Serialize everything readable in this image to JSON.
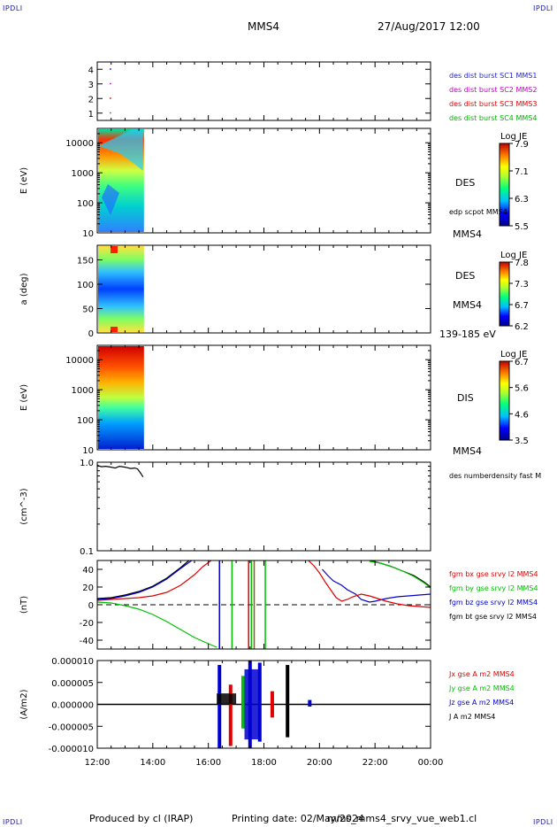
{
  "header": {
    "corner_tl": "IPDLI",
    "corner_tr": "IPDLI",
    "corner_bl": "IPDLI",
    "corner_br": "IPDLI",
    "spacecraft": "MMS4",
    "datetime": "27/Aug/2017 12:00"
  },
  "footer": {
    "produced_by": "Produced by cl (IRAP)",
    "printing_date": "Printing date: 02/May/2024",
    "filename": "mms_mms4_srvy_vue_web1.cl"
  },
  "time_axis": {
    "start": "12:00",
    "end": "00:00",
    "ticks": [
      "12:00",
      "14:00",
      "16:00",
      "18:00",
      "20:00",
      "22:00",
      "00:00"
    ],
    "data_coverage_end_hours": 13.65
  },
  "chart_data": [
    {
      "panel": "burst",
      "type": "scatter",
      "ylim": [
        0.5,
        4.5
      ],
      "yticks": [
        "1",
        "2",
        "3",
        "4"
      ],
      "points": [
        {
          "hour": 12.45,
          "y": 1,
          "color": "#00a000"
        },
        {
          "hour": 12.45,
          "y": 2,
          "color": "#e00000"
        },
        {
          "hour": 12.45,
          "y": 3,
          "color": "#c000c0"
        },
        {
          "hour": 12.45,
          "y": 4,
          "color": "#0000e0"
        }
      ],
      "legend": [
        {
          "label": "des dist burst SC1 MMS1",
          "color": "#1f1fd0"
        },
        {
          "label": "des dist burst SC2 MMS2",
          "color": "#c000c0"
        },
        {
          "label": "des dist burst SC3 MMS3",
          "color": "#e00000"
        },
        {
          "label": "des dist burst SC4 MMS4",
          "color": "#00b000"
        }
      ]
    },
    {
      "panel": "des_energy",
      "type": "heatmap",
      "ylabel": "E (eV)",
      "yscale": "log",
      "ylim": [
        10,
        30000
      ],
      "yticks": [
        "10",
        "100",
        "1000",
        "10000"
      ],
      "right_labels": [
        "DES",
        "edp scpot MMS4",
        "MMS4"
      ],
      "colorbar": {
        "title": "Log JE",
        "min": 5.5,
        "max": 7.9,
        "ticks": [
          "7.9",
          "7.1",
          "6.3",
          "5.5"
        ]
      }
    },
    {
      "panel": "des_pitch",
      "type": "heatmap",
      "ylabel": "a (deg)",
      "ylim": [
        0,
        180
      ],
      "yticks": [
        "0",
        "50",
        "100",
        "150"
      ],
      "right_labels": [
        "DES",
        "MMS4",
        "139-185 eV"
      ],
      "colorbar": {
        "title": "Log JE",
        "min": 6.2,
        "max": 7.8,
        "ticks": [
          "7.8",
          "7.3",
          "6.7",
          "6.2"
        ]
      }
    },
    {
      "panel": "dis_energy",
      "type": "heatmap",
      "ylabel": "E (eV)",
      "yscale": "log",
      "ylim": [
        10,
        30000
      ],
      "yticks": [
        "10",
        "100",
        "1000",
        "10000"
      ],
      "right_labels": [
        "DIS",
        "MMS4"
      ],
      "colorbar": {
        "title": "Log JE",
        "min": 3.5,
        "max": 6.7,
        "ticks": [
          "6.7",
          "5.6",
          "4.6",
          "3.5"
        ]
      }
    },
    {
      "panel": "density",
      "type": "line",
      "ylabel": "(cm^-3)",
      "yscale": "log",
      "ylim": [
        0.1,
        1.0
      ],
      "yticks": [
        "0.1",
        "1.0"
      ],
      "legend": [
        {
          "label": "des numberdensity fast M",
          "color": "#000000"
        }
      ],
      "series": [
        {
          "name": "des numberdensity fast M",
          "color": "#000000",
          "x": [
            12.0,
            12.05,
            12.15,
            12.3,
            12.5,
            12.65,
            12.8,
            13.0,
            13.2,
            13.35,
            13.45,
            13.5,
            13.55,
            13.6,
            13.65
          ],
          "y": [
            0.93,
            0.91,
            0.89,
            0.9,
            0.88,
            0.86,
            0.9,
            0.88,
            0.85,
            0.86,
            0.84,
            0.8,
            0.76,
            0.72,
            0.68
          ]
        }
      ]
    },
    {
      "panel": "fgm",
      "type": "line",
      "ylabel": "(nT)",
      "ylim": [
        -50,
        50
      ],
      "yticks": [
        "-40",
        "-20",
        "0",
        "20",
        "40"
      ],
      "legend": [
        {
          "label": "fgm bx gse srvy l2 MMS4",
          "color": "#e00000"
        },
        {
          "label": "fgm by gse srvy l2 MMS4",
          "color": "#00c000"
        },
        {
          "label": "fgm bz gse srvy l2 MMS4",
          "color": "#0000d0"
        },
        {
          "label": "fgm bt gse srvy l2 MMS4",
          "color": "#000000"
        }
      ],
      "series": [
        {
          "name": "fgm bt gse srvy l2 MMS4",
          "color": "#000000",
          "segments": [
            {
              "x": [
                12.0,
                12.5,
                13.0,
                13.5,
                14.0,
                14.5,
                15.0,
                15.3
              ],
              "y": [
                7,
                8,
                11,
                15,
                21,
                30,
                42,
                50
              ]
            },
            {
              "x": [
                21.8,
                22.2,
                22.6,
                23.0,
                23.4,
                23.8,
                24.0
              ],
              "y": [
                50,
                47,
                43,
                38,
                33,
                25,
                20
              ]
            }
          ]
        },
        {
          "name": "fgm bz gse srvy l2 MMS4",
          "color": "#0000d0",
          "segments": [
            {
              "x": [
                12.0,
                12.5,
                13.0,
                13.5,
                14.0,
                14.5,
                15.0,
                15.4
              ],
              "y": [
                6,
                7,
                10,
                14,
                20,
                29,
                41,
                50
              ]
            },
            {
              "x": [
                20.1,
                20.3,
                20.5,
                20.8,
                21.0,
                21.3,
                21.5,
                21.8,
                22.0,
                22.4,
                22.8,
                23.2,
                23.6,
                24.0
              ],
              "y": [
                40,
                33,
                27,
                22,
                17,
                12,
                6,
                3,
                4,
                7,
                9,
                10,
                11,
                12
              ]
            }
          ]
        },
        {
          "name": "fgm bx gse srvy l2 MMS4",
          "color": "#e00000",
          "segments": [
            {
              "x": [
                12.0,
                12.5,
                13.0,
                13.5,
                14.0,
                14.5,
                15.0,
                15.5,
                15.8,
                16.1
              ],
              "y": [
                5,
                6,
                7,
                8,
                10,
                14,
                22,
                34,
                43,
                50
              ]
            },
            {
              "x": [
                19.6,
                19.8,
                20.0,
                20.2,
                20.4,
                20.6,
                20.8,
                21.0,
                21.2,
                21.5,
                21.8,
                22.0,
                22.4,
                22.8,
                23.2,
                23.6,
                24.0
              ],
              "y": [
                50,
                44,
                36,
                26,
                17,
                8,
                4,
                6,
                9,
                12,
                10,
                8,
                4,
                1,
                -1,
                -2,
                -3
              ]
            }
          ]
        },
        {
          "name": "fgm by gse srvy l2 MMS4",
          "color": "#00c000",
          "segments": [
            {
              "x": [
                12.0,
                12.5,
                13.0,
                13.5,
                14.0,
                14.5,
                15.0,
                15.5,
                16.0,
                16.3
              ],
              "y": [
                3,
                2,
                -1,
                -5,
                -11,
                -19,
                -28,
                -37,
                -44,
                -48
              ]
            },
            {
              "x": [
                21.8,
                22.2,
                22.6,
                23.0,
                23.4,
                23.8,
                24.0
              ],
              "y": [
                49,
                47,
                43,
                38,
                32,
                24,
                19
              ]
            }
          ]
        }
      ],
      "spikes": [
        {
          "hour": 16.4,
          "color": "#0000d0"
        },
        {
          "hour": 16.85,
          "color": "#00c000"
        },
        {
          "hour": 17.45,
          "color": "#e00000"
        },
        {
          "hour": 17.55,
          "color": "#00c000"
        },
        {
          "hour": 17.65,
          "color": "#806000"
        },
        {
          "hour": 18.05,
          "color": "#00c000"
        }
      ]
    },
    {
      "panel": "current",
      "type": "line",
      "ylabel": "(A/m2)",
      "ylim": [
        -1e-05,
        1e-05
      ],
      "yticks": [
        "-0.000010",
        "-0.000005",
        "0.000000",
        "0.000005",
        "0.000010"
      ],
      "legend": [
        {
          "label": "Jx gse A m2 MMS4",
          "color": "#e00000"
        },
        {
          "label": "Jy gse A m2 MMS4",
          "color": "#00c000"
        },
        {
          "label": "Jz gse A m2 MMS4",
          "color": "#0000d0"
        },
        {
          "label": "J A m2 MMS4",
          "color": "#000000"
        }
      ],
      "bursts": [
        {
          "hour": 16.4,
          "max": 9e-06,
          "min": -1e-05,
          "color": "#0000d0"
        },
        {
          "hour": 16.8,
          "max": 4.5e-06,
          "min": -9.5e-06,
          "color": "#e00000"
        },
        {
          "hour": 17.25,
          "max": 6.5e-06,
          "min": -5.5e-06,
          "color": "#00c000"
        },
        {
          "hour": 17.5,
          "max": 1e-05,
          "min": -1e-05,
          "color": "#0000d0"
        },
        {
          "hour": 17.85,
          "max": 9.5e-06,
          "min": -8.5e-06,
          "color": "#0000d0"
        },
        {
          "hour": 18.3,
          "max": 3e-06,
          "min": -3e-06,
          "color": "#e00000"
        },
        {
          "hour": 18.85,
          "max": 9e-06,
          "min": -7.5e-06,
          "color": "#000000"
        },
        {
          "hour": 19.65,
          "max": 1e-06,
          "min": -5e-07,
          "color": "#0000d0"
        }
      ]
    }
  ]
}
